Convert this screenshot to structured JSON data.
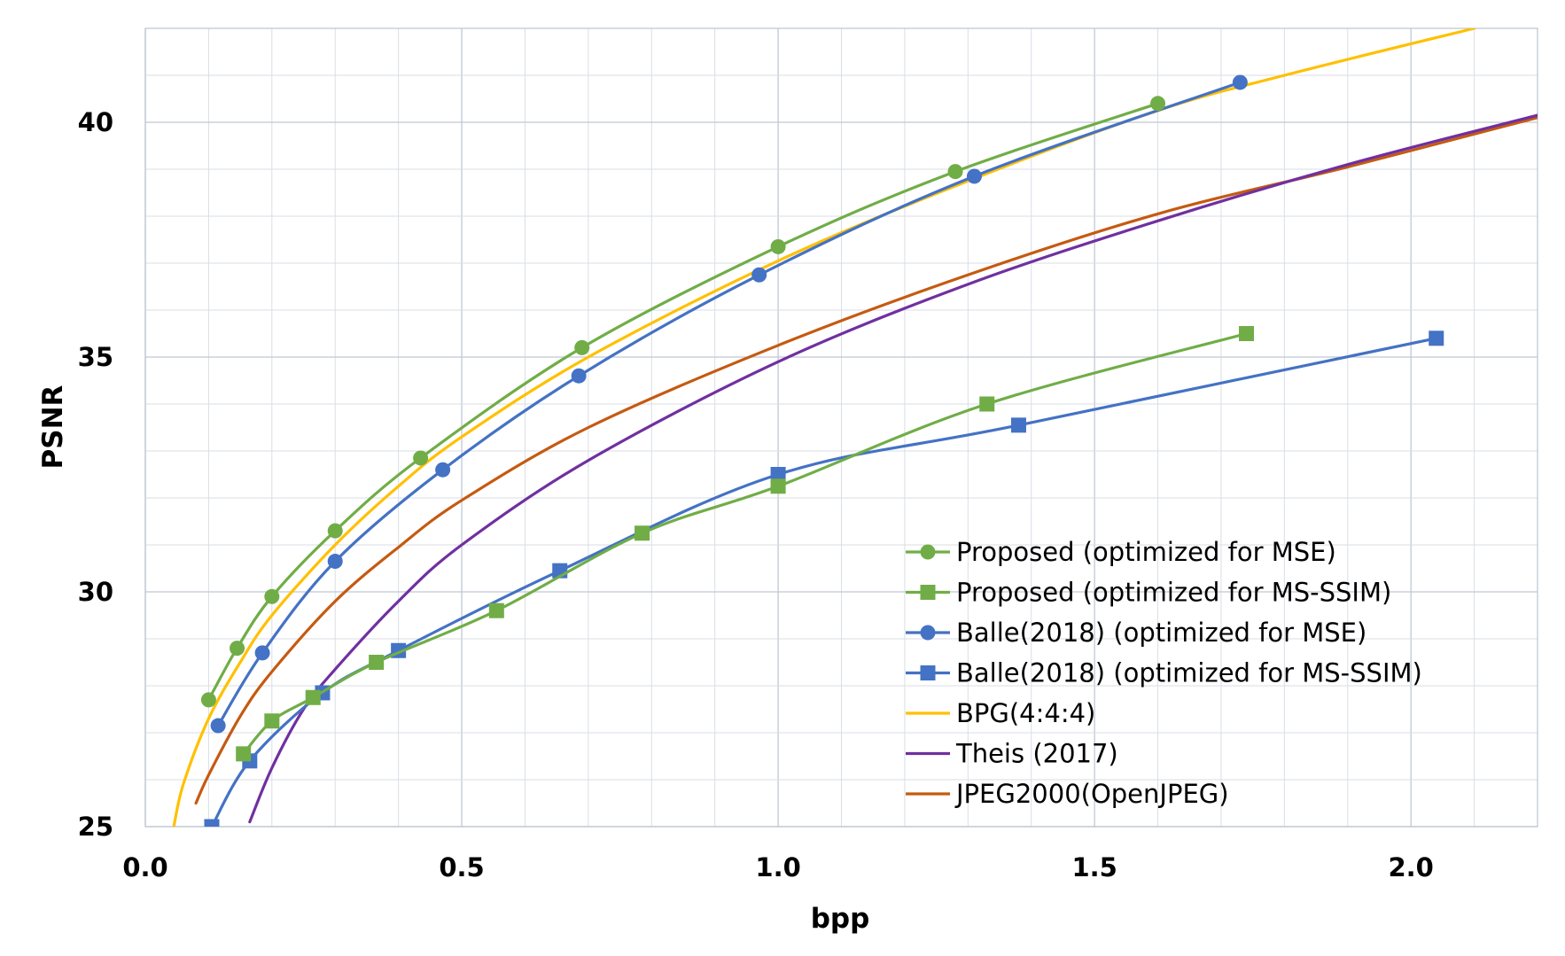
{
  "chart_data": {
    "type": "line",
    "title": "",
    "xlabel": "bpp",
    "ylabel": "PSNR",
    "xlim": [
      0,
      2.2
    ],
    "ylim": [
      25,
      42
    ],
    "x_ticks": [
      "0.0",
      "0.5",
      "1.0",
      "1.5",
      "2.0"
    ],
    "y_ticks": [
      "25",
      "30",
      "35",
      "40"
    ],
    "grid": true,
    "legend_position": "bottom-right",
    "series": [
      {
        "name": "Proposed (optimized for MSE)",
        "color": "#70ad47",
        "marker": "circle",
        "x": [
          0.1,
          0.145,
          0.2,
          0.3,
          0.435,
          0.69,
          1.0,
          1.28,
          1.6
        ],
        "y": [
          27.7,
          28.8,
          29.9,
          31.3,
          32.85,
          35.2,
          37.35,
          38.95,
          40.4
        ]
      },
      {
        "name": "Proposed (optimized for MS-SSIM)",
        "color": "#70ad47",
        "marker": "square",
        "x": [
          0.155,
          0.2,
          0.265,
          0.365,
          0.555,
          0.785,
          1.0,
          1.33,
          1.74
        ],
        "y": [
          26.55,
          27.25,
          27.75,
          28.5,
          29.6,
          31.25,
          32.25,
          34.0,
          35.5
        ]
      },
      {
        "name": "Balle(2018) (optimized for MSE)",
        "color": "#4472c4",
        "marker": "circle",
        "x": [
          0.115,
          0.185,
          0.3,
          0.47,
          0.685,
          0.97,
          1.31,
          1.73
        ],
        "y": [
          27.15,
          28.7,
          30.65,
          32.6,
          34.6,
          36.75,
          38.85,
          40.85
        ]
      },
      {
        "name": "Balle(2018) (optimized for MS-SSIM)",
        "color": "#4472c4",
        "marker": "square",
        "x": [
          0.105,
          0.165,
          0.28,
          0.4,
          0.655,
          1.0,
          1.38,
          2.04
        ],
        "y": [
          25.0,
          26.4,
          27.85,
          28.75,
          30.45,
          32.5,
          33.55,
          35.4
        ]
      },
      {
        "name": "BPG(4:4:4)",
        "color": "#ffc000",
        "marker": "none",
        "x": [
          0.045,
          0.06,
          0.1,
          0.15,
          0.2,
          0.3,
          0.4,
          0.5,
          0.7,
          1.0,
          1.3,
          1.6,
          1.8,
          2.1
        ],
        "y": [
          25.0,
          25.9,
          27.3,
          28.5,
          29.5,
          31.0,
          32.25,
          33.3,
          35.0,
          37.05,
          38.75,
          40.25,
          41.0,
          42.0
        ]
      },
      {
        "name": "Theis (2017)",
        "color": "#7030a0",
        "marker": "none",
        "x": [
          0.165,
          0.2,
          0.25,
          0.3,
          0.4,
          0.5,
          0.7,
          1.0,
          1.3,
          1.6,
          1.9,
          2.2
        ],
        "y": [
          25.1,
          26.25,
          27.5,
          28.35,
          29.8,
          31.0,
          32.8,
          34.9,
          36.55,
          37.9,
          39.1,
          40.15
        ]
      },
      {
        "name": "JPEG2000(OpenJPEG)",
        "color": "#c55a11",
        "marker": "none",
        "x": [
          0.08,
          0.1,
          0.15,
          0.2,
          0.3,
          0.4,
          0.5,
          0.7,
          1.0,
          1.3,
          1.6,
          1.9,
          2.2
        ],
        "y": [
          25.5,
          26.1,
          27.35,
          28.3,
          29.8,
          30.95,
          31.95,
          33.5,
          35.25,
          36.75,
          38.05,
          39.05,
          40.1
        ]
      }
    ]
  }
}
